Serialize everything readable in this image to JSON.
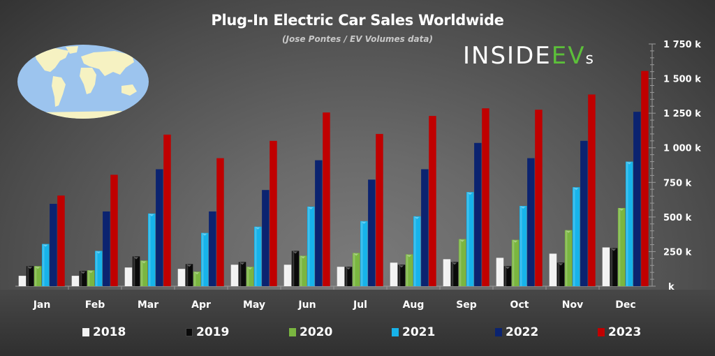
{
  "header": {
    "title": "Plug-In Electric Car Sales Worldwide",
    "subtitle": "(Jose Pontes / EV Volumes data)"
  },
  "logo": {
    "part1": "INSIDE",
    "part2": "EV",
    "part3": "s"
  },
  "map_icon": "world-map-icon",
  "colors": {
    "2018": "#f2f2f2",
    "2019": "#0a0a0a",
    "2020": "#7ab640",
    "2021": "#17b3ea",
    "2022": "#0b2370",
    "2023": "#c00000",
    "logo_green": "#5cbf3a"
  },
  "chart_data": {
    "type": "bar",
    "title": "Plug-In Electric Car Sales Worldwide",
    "subtitle": "(Jose Pontes / EV Volumes data)",
    "xlabel": "",
    "ylabel": "",
    "ylim": [
      0,
      1750
    ],
    "yunit": "k",
    "yticks": [
      0,
      250,
      500,
      750,
      1000,
      1250,
      1500,
      1750
    ],
    "ytick_labels": [
      "k",
      "250 k",
      "500 k",
      "750 k",
      "1 000 k",
      "1 250 k",
      "1 500 k",
      "1 750 k"
    ],
    "y_axis_side": "right",
    "grid": false,
    "legend_position": "bottom",
    "categories": [
      "Jan",
      "Feb",
      "Mar",
      "Apr",
      "May",
      "Jun",
      "Jul",
      "Aug",
      "Sep",
      "Oct",
      "Nov",
      "Dec"
    ],
    "series": [
      {
        "name": "2018",
        "values": [
          75,
          75,
          135,
          125,
          155,
          155,
          140,
          170,
          195,
          205,
          235,
          280
        ]
      },
      {
        "name": "2019",
        "values": [
          145,
          110,
          215,
          160,
          175,
          255,
          140,
          155,
          175,
          145,
          170,
          275
        ]
      },
      {
        "name": "2020",
        "values": [
          145,
          115,
          185,
          105,
          140,
          220,
          240,
          230,
          340,
          335,
          405,
          565
        ]
      },
      {
        "name": "2021",
        "values": [
          305,
          255,
          525,
          385,
          430,
          575,
          470,
          505,
          680,
          580,
          715,
          900
        ]
      },
      {
        "name": "2022",
        "values": [
          595,
          540,
          845,
          540,
          695,
          910,
          770,
          845,
          1035,
          925,
          1050,
          1260
        ]
      },
      {
        "name": "2023",
        "values": [
          655,
          805,
          1095,
          925,
          1050,
          1255,
          1100,
          1230,
          1285,
          1275,
          1385,
          1555
        ]
      }
    ]
  }
}
